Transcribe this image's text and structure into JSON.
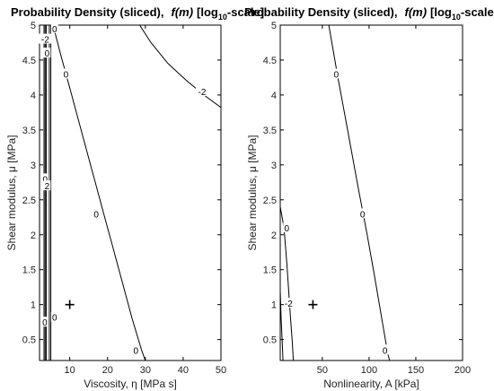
{
  "chart_data": [
    {
      "type": "contour",
      "title": "Probability Density (sliced),",
      "title_func": "f(m)",
      "title_scale_pre": "[log",
      "title_scale_sub": "10",
      "title_scale_post": "-scale]",
      "xlabel": "Viscosity, η [MPa s]",
      "ylabel": "Shear modulus, μ [MPa]",
      "xlim": [
        2,
        50
      ],
      "ylim": [
        0.2,
        5
      ],
      "xticks": [
        10,
        20,
        30,
        40,
        50
      ],
      "yticks": [
        0.5,
        1,
        1.5,
        2,
        2.5,
        3,
        3.5,
        4,
        4.5,
        5
      ],
      "ytick_labels": [
        "0.5",
        "1",
        "1.5",
        "2",
        "2.5",
        "3",
        "3.5",
        "4",
        "4.5",
        "5"
      ],
      "marker": {
        "symbol": "+",
        "x": 10,
        "y": 1
      },
      "contours": [
        {
          "level": "0",
          "points": [
            [
              5.6,
              5.0
            ],
            [
              7.5,
              4.6
            ],
            [
              10.5,
              4.0
            ],
            [
              13.5,
              3.4
            ],
            [
              16.5,
              2.8
            ],
            [
              19,
              2.3
            ],
            [
              21.5,
              1.8
            ],
            [
              24,
              1.3
            ],
            [
              26.5,
              0.8
            ],
            [
              29,
              0.35
            ],
            [
              30,
              0.2
            ]
          ]
        },
        {
          "level": "-2",
          "points": [
            [
              28.5,
              5.0
            ],
            [
              31.5,
              4.75
            ],
            [
              36,
              4.45
            ],
            [
              41,
              4.2
            ],
            [
              46,
              3.98
            ],
            [
              50,
              3.82
            ]
          ]
        },
        {
          "level": "",
          "points": [
            [
              3.2,
              5.0
            ],
            [
              3.2,
              0.2
            ]
          ]
        },
        {
          "level": "",
          "points": [
            [
              3.5,
              5.0
            ],
            [
              3.5,
              0.2
            ]
          ]
        },
        {
          "level": "",
          "points": [
            [
              3.8,
              5.0
            ],
            [
              3.8,
              0.2
            ]
          ]
        },
        {
          "level": "",
          "points": [
            [
              4.6,
              5.0
            ],
            [
              4.6,
              0.2
            ]
          ]
        },
        {
          "level": "",
          "points": [
            [
              5.0,
              5.0
            ],
            [
              5.0,
              0.2
            ]
          ]
        }
      ],
      "contour_labels": [
        {
          "text": "0",
          "x": 9,
          "y": 4.3
        },
        {
          "text": "0",
          "x": 17,
          "y": 2.3
        },
        {
          "text": "0",
          "x": 27.5,
          "y": 0.35
        },
        {
          "text": "-2",
          "x": 45,
          "y": 4.05
        },
        {
          "text": "0",
          "x": 6,
          "y": 4.95
        },
        {
          "text": "0",
          "x": 6,
          "y": 0.82
        },
        {
          "text": "-2",
          "x": 3.5,
          "y": 4.8
        },
        {
          "text": "0",
          "x": 4.0,
          "y": 4.6
        },
        {
          "text": "0",
          "x": 3.5,
          "y": 2.8
        },
        {
          "text": "2",
          "x": 4.0,
          "y": 2.7
        },
        {
          "text": "0",
          "x": 3.4,
          "y": 0.75
        }
      ]
    },
    {
      "type": "contour",
      "title": "Probability Density (sliced),",
      "title_func": "f(m)",
      "title_scale_pre": "[log",
      "title_scale_sub": "10",
      "title_scale_post": "-scale]",
      "xlabel": "Nonlinearity, A [kPa]",
      "ylabel": "Shear modulus, μ [MPa]",
      "xlim": [
        5,
        200
      ],
      "ylim": [
        0.2,
        5
      ],
      "xticks": [
        50,
        100,
        150,
        200
      ],
      "yticks": [
        0.5,
        1,
        1.5,
        2,
        2.5,
        3,
        3.5,
        4,
        4.5,
        5
      ],
      "ytick_labels": [
        "0.5",
        "1",
        "1.5",
        "2",
        "2.5",
        "3",
        "3.5",
        "4",
        "4.5",
        "5"
      ],
      "marker": {
        "symbol": "+",
        "x": 40,
        "y": 1
      },
      "contours": [
        {
          "level": "0",
          "points": [
            [
              57,
              5.0
            ],
            [
              66,
              4.3
            ],
            [
              77,
              3.5
            ],
            [
              88,
              2.7
            ],
            [
              98,
              2.0
            ],
            [
              106,
              1.4
            ],
            [
              113,
              0.85
            ],
            [
              120,
              0.3
            ],
            [
              122,
              0.2
            ]
          ]
        },
        {
          "level": "-2",
          "points": [
            [
              5,
              2.4
            ],
            [
              9,
              2.1
            ],
            [
              12,
              1.6
            ],
            [
              14,
              1.2
            ],
            [
              16,
              0.8
            ],
            [
              18,
              0.45
            ],
            [
              19,
              0.2
            ]
          ]
        },
        {
          "level": "",
          "points": [
            [
              5,
              1.2
            ],
            [
              6,
              0.8
            ],
            [
              7,
              0.5
            ],
            [
              8,
              0.2
            ]
          ]
        }
      ],
      "contour_labels": [
        {
          "text": "0",
          "x": 65,
          "y": 4.3
        },
        {
          "text": "0",
          "x": 93,
          "y": 2.3
        },
        {
          "text": "0",
          "x": 117,
          "y": 0.35
        },
        {
          "text": "0",
          "x": 12,
          "y": 2.1
        },
        {
          "text": "-2",
          "x": 14,
          "y": 1.02
        }
      ]
    }
  ]
}
